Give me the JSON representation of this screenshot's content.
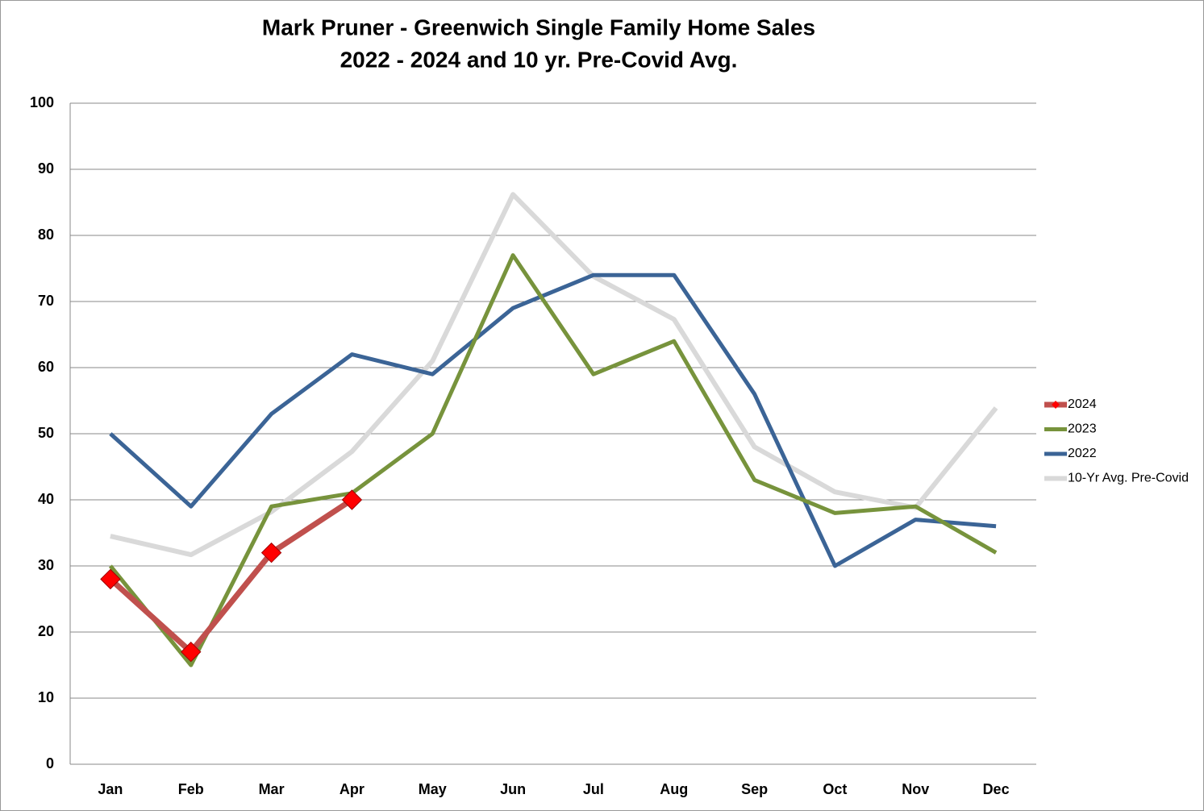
{
  "chart_data": {
    "type": "line",
    "title": "Mark Pruner - Greenwich Single Family Home Sales",
    "subtitle": "2022 - 2024 and 10 yr. Pre-Covid Avg.",
    "categories": [
      "Jan",
      "Feb",
      "Mar",
      "Apr",
      "May",
      "Jun",
      "Jul",
      "Aug",
      "Sep",
      "Oct",
      "Nov",
      "Dec"
    ],
    "series": [
      {
        "name": "2024",
        "color": "#c0504d",
        "marker": "diamond",
        "marker_color": "#ff0000",
        "values": [
          28,
          17,
          32,
          40,
          null,
          null,
          null,
          null,
          null,
          null,
          null,
          null
        ]
      },
      {
        "name": "2023",
        "color": "#77933c",
        "values": [
          30,
          15,
          39,
          41,
          50,
          77,
          59,
          64,
          43,
          38,
          39,
          32
        ]
      },
      {
        "name": "2022",
        "color": "#3b6496",
        "values": [
          50,
          39,
          53,
          62,
          59,
          69,
          74,
          74,
          56,
          30,
          37,
          36
        ]
      },
      {
        "name": "10-Yr Avg. Pre-Covid",
        "color": "#d9d9d9",
        "values": [
          34.5,
          31.7,
          38.2,
          47.3,
          61,
          86.2,
          73.8,
          67.3,
          48,
          41.2,
          38.8,
          53.9
        ]
      }
    ],
    "ylim": [
      0,
      100
    ],
    "yticks": [
      0,
      10,
      20,
      30,
      40,
      50,
      60,
      70,
      80,
      90,
      100
    ],
    "grid": true,
    "legend": "right"
  }
}
